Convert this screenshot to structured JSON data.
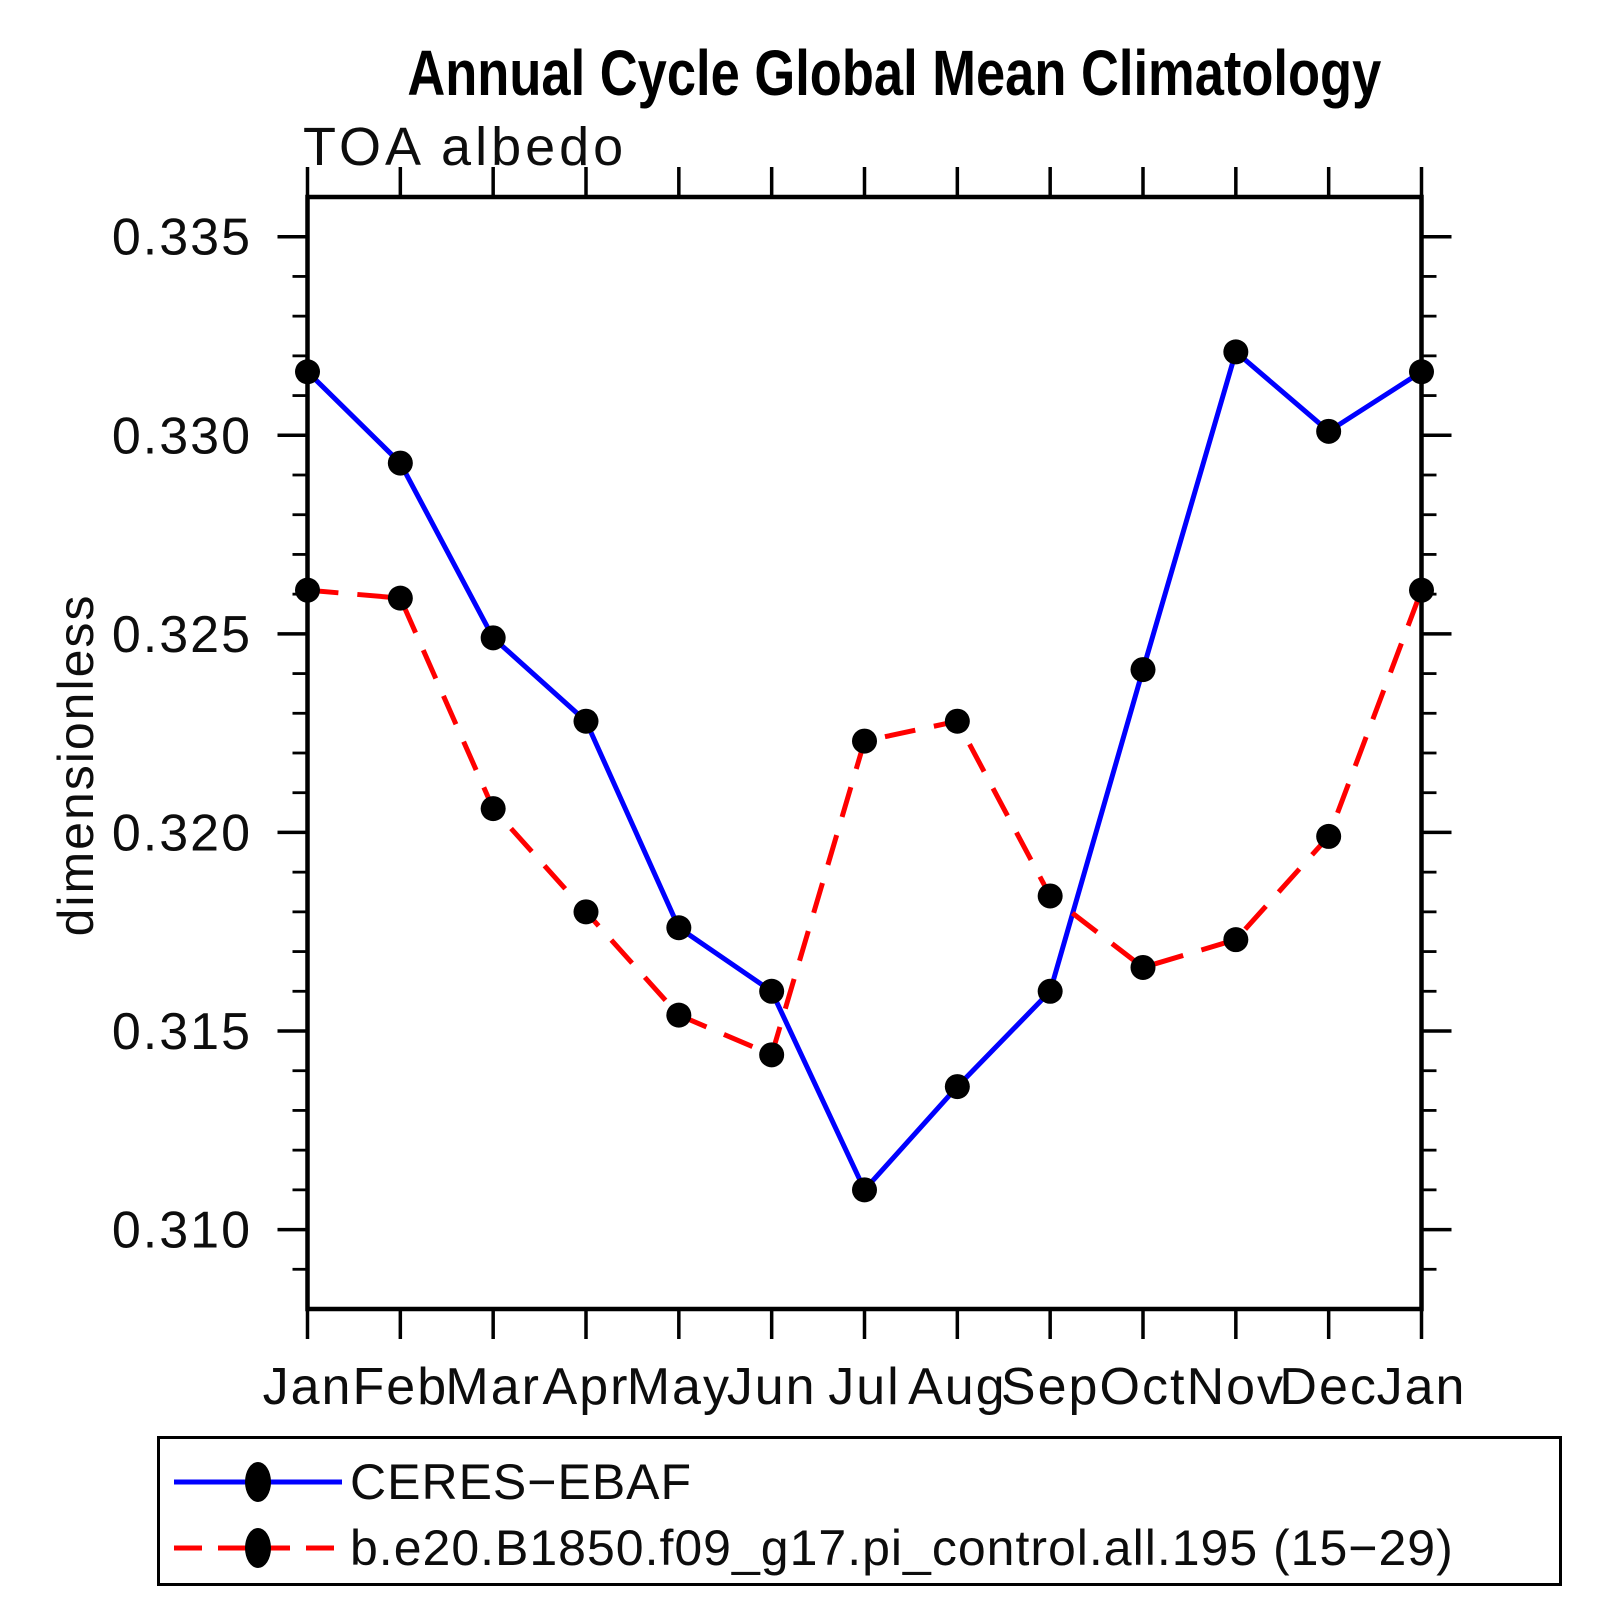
{
  "header": {
    "title": "Annual Cycle Global Mean Climatology",
    "subtitle": "TOA albedo"
  },
  "chart_data": {
    "type": "line",
    "title": "Annual Cycle Global Mean Climatology",
    "subtitle": "TOA albedo",
    "xlabel": "",
    "ylabel": "dimensionless",
    "categories": [
      "Jan",
      "Feb",
      "Mar",
      "Apr",
      "May",
      "Jun",
      "Jul",
      "Aug",
      "Sep",
      "Oct",
      "Nov",
      "Dec",
      "Jan"
    ],
    "ylim": [
      0.308,
      0.336
    ],
    "y_major_ticks": [
      0.31,
      0.315,
      0.32,
      0.325,
      0.33,
      0.335
    ],
    "y_tick_labels": [
      "0.310",
      "0.315",
      "0.320",
      "0.325",
      "0.330",
      "0.335"
    ],
    "y_minor_step": 0.001,
    "grid": false,
    "legend_position": "bottom-left-box",
    "axis_color": "#000000",
    "marker_color": "#000000",
    "series": [
      {
        "name": "CERES−EBAF",
        "color": "#0000ff",
        "line_style": "solid",
        "marker": "filled-circle",
        "values": [
          0.3316,
          0.3293,
          0.3249,
          0.3228,
          0.3176,
          0.316,
          0.311,
          0.3136,
          0.316,
          0.3241,
          0.3321,
          0.3301,
          0.3316
        ]
      },
      {
        "name": "b.e20.B1850.f09_g17.pi_control.all.195 (15−29)",
        "color": "#ff0000",
        "line_style": "dashed",
        "marker": "filled-circle",
        "values": [
          0.3261,
          0.3259,
          0.3206,
          0.318,
          0.3154,
          0.3144,
          0.3223,
          0.3228,
          0.3184,
          0.3166,
          0.3173,
          0.3199,
          0.3261
        ]
      }
    ]
  },
  "legend": {
    "items": [
      {
        "label": "CERES−EBAF"
      },
      {
        "label": "b.e20.B1850.f09_g17.pi_control.all.195 (15−29)"
      }
    ]
  }
}
